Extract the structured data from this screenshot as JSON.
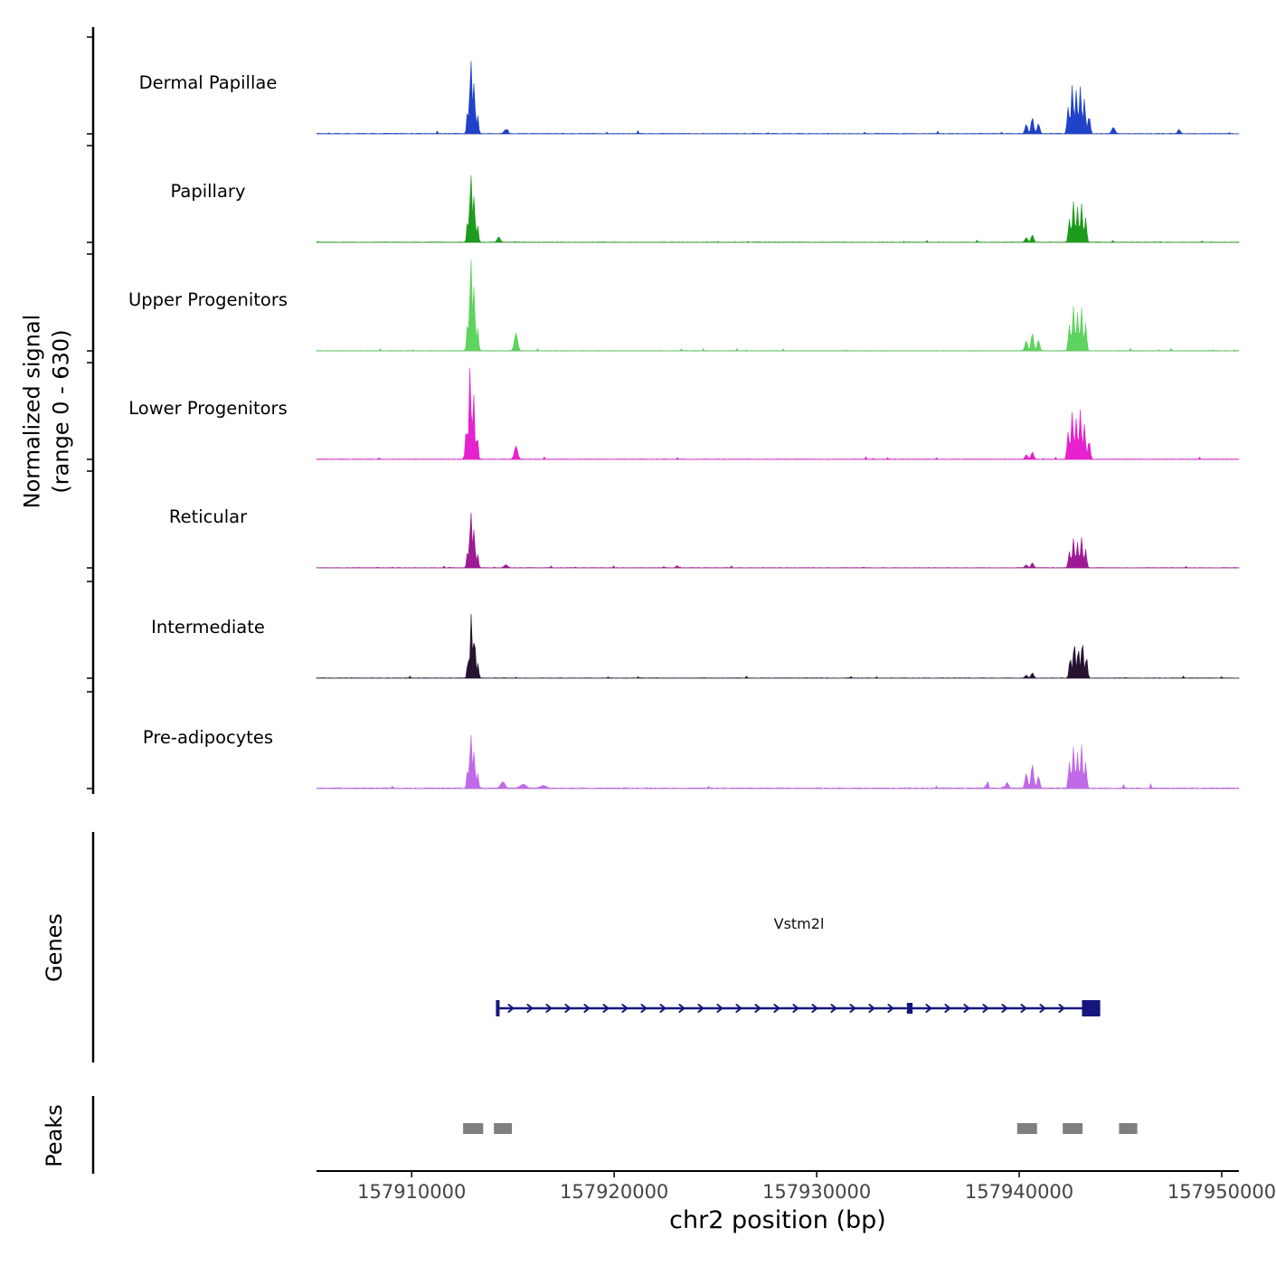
{
  "figure": {
    "y_axis_label_line1": "Normalized signal",
    "y_axis_label_line2": "(range 0 - 630)",
    "genes_section_label": "Genes",
    "peaks_section_label": "Peaks",
    "gene_name": "Vstm2l",
    "x_axis_title": "chr2 position (bp)"
  },
  "chart_data": {
    "type": "area",
    "xlabel": "chr2 position (bp)",
    "ylabel": "Normalized signal (range 0 - 630)",
    "x_domain": [
      157905300,
      157950850
    ],
    "ylim": [
      0,
      630
    ],
    "x_ticks": [
      {
        "pos": 157910000,
        "label": "157910000"
      },
      {
        "pos": 157920000,
        "label": "157920000"
      },
      {
        "pos": 157930000,
        "label": "157930000"
      },
      {
        "pos": 157940000,
        "label": "157940000"
      },
      {
        "pos": 157950000,
        "label": "157950000"
      }
    ],
    "tracks": [
      {
        "label": "Dermal Papillae",
        "color": "#1f42c8",
        "noise": 6,
        "peaks": [
          [
            157912760,
            150,
            60
          ],
          [
            157912920,
            500,
            65
          ],
          [
            157913080,
            330,
            65
          ],
          [
            157913260,
            120,
            60
          ],
          [
            157914650,
            25,
            120
          ],
          [
            157940350,
            60,
            90
          ],
          [
            157940650,
            105,
            85
          ],
          [
            157940950,
            65,
            85
          ],
          [
            157942420,
            175,
            75
          ],
          [
            157942620,
            320,
            70
          ],
          [
            157942820,
            285,
            70
          ],
          [
            157943020,
            310,
            70
          ],
          [
            157943220,
            225,
            70
          ],
          [
            157943450,
            115,
            80
          ],
          [
            157944650,
            40,
            110
          ],
          [
            157947900,
            28,
            70
          ]
        ]
      },
      {
        "label": "Papillary",
        "color": "#1d9b1d",
        "noise": 4,
        "peaks": [
          [
            157912760,
            140,
            60
          ],
          [
            157912920,
            460,
            65
          ],
          [
            157913080,
            300,
            65
          ],
          [
            157913260,
            110,
            60
          ],
          [
            157914300,
            35,
            100
          ],
          [
            157940350,
            30,
            90
          ],
          [
            157940650,
            48,
            85
          ],
          [
            157942480,
            150,
            75
          ],
          [
            157942680,
            265,
            70
          ],
          [
            157942880,
            230,
            70
          ],
          [
            157943080,
            250,
            70
          ],
          [
            157943280,
            160,
            70
          ]
        ]
      },
      {
        "label": "Upper Progenitors",
        "color": "#5fd35f",
        "noise": 5,
        "peaks": [
          [
            157912760,
            185,
            60
          ],
          [
            157912920,
            630,
            65
          ],
          [
            157913080,
            420,
            65
          ],
          [
            157913260,
            150,
            60
          ],
          [
            157915150,
            115,
            110
          ],
          [
            157940350,
            65,
            90
          ],
          [
            157940650,
            115,
            85
          ],
          [
            157940950,
            70,
            85
          ],
          [
            157942480,
            170,
            75
          ],
          [
            157942680,
            290,
            70
          ],
          [
            157942880,
            250,
            70
          ],
          [
            157943080,
            280,
            70
          ],
          [
            157943280,
            180,
            70
          ]
        ]
      },
      {
        "label": "Lower Progenitors",
        "color": "#e522ce",
        "noise": 5,
        "peaks": [
          [
            157912700,
            200,
            70
          ],
          [
            157912880,
            610,
            65
          ],
          [
            157913060,
            430,
            65
          ],
          [
            157913240,
            160,
            60
          ],
          [
            157915150,
            85,
            110
          ],
          [
            157940350,
            28,
            90
          ],
          [
            157940650,
            48,
            85
          ],
          [
            157942420,
            180,
            75
          ],
          [
            157942620,
            310,
            70
          ],
          [
            157942820,
            270,
            70
          ],
          [
            157943020,
            325,
            70
          ],
          [
            157943220,
            230,
            70
          ],
          [
            157943450,
            120,
            80
          ]
        ]
      },
      {
        "label": "Reticular",
        "color": "#9c1b94",
        "noise": 4,
        "peaks": [
          [
            157912760,
            110,
            60
          ],
          [
            157912920,
            380,
            65
          ],
          [
            157913080,
            250,
            65
          ],
          [
            157913260,
            90,
            60
          ],
          [
            157914650,
            20,
            110
          ],
          [
            157923100,
            15,
            60
          ],
          [
            157940350,
            18,
            90
          ],
          [
            157940650,
            32,
            85
          ],
          [
            157942480,
            105,
            75
          ],
          [
            157942680,
            190,
            70
          ],
          [
            157942880,
            165,
            70
          ],
          [
            157943080,
            200,
            70
          ],
          [
            157943280,
            120,
            70
          ]
        ]
      },
      {
        "label": "Intermediate",
        "color": "#261331",
        "noise": 4,
        "peaks": [
          [
            157912780,
            120,
            60
          ],
          [
            157912940,
            420,
            62
          ],
          [
            157913100,
            280,
            62
          ],
          [
            157913270,
            95,
            60
          ],
          [
            157940350,
            18,
            90
          ],
          [
            157940650,
            34,
            85
          ],
          [
            157942520,
            130,
            75
          ],
          [
            157942720,
            235,
            70
          ],
          [
            157942920,
            200,
            70
          ],
          [
            157943120,
            245,
            70
          ],
          [
            157943320,
            140,
            70
          ]
        ]
      },
      {
        "label": "Pre-adipocytes",
        "color": "#c06ae8",
        "noise": 9,
        "peaks": [
          [
            157912760,
            120,
            60
          ],
          [
            157912920,
            365,
            65
          ],
          [
            157913080,
            240,
            65
          ],
          [
            157913260,
            100,
            60
          ],
          [
            157914500,
            40,
            150
          ],
          [
            157915500,
            25,
            200
          ],
          [
            157916500,
            18,
            200
          ],
          [
            157938400,
            25,
            100
          ],
          [
            157939400,
            35,
            100
          ],
          [
            157940350,
            95,
            90
          ],
          [
            157940650,
            160,
            85
          ],
          [
            157940950,
            75,
            85
          ],
          [
            157942480,
            170,
            75
          ],
          [
            157942680,
            270,
            70
          ],
          [
            157942880,
            230,
            70
          ],
          [
            157943080,
            280,
            70
          ],
          [
            157943280,
            170,
            70
          ]
        ]
      }
    ],
    "gene_track": {
      "section_label": "Genes",
      "gene": {
        "name": "Vstm2l",
        "start": 157914250,
        "end": 157944000,
        "strand": "+",
        "mid_exon": 157934600,
        "end_exon_start": 157943100,
        "color": "#15157d"
      }
    },
    "peak_track": {
      "section_label": "Peaks",
      "color": "#7f7f7f",
      "intervals": [
        [
          157912540,
          157913530
        ],
        [
          157914060,
          157914950
        ],
        [
          157939900,
          157940880
        ],
        [
          157942150,
          157943130
        ],
        [
          157944930,
          157945830
        ]
      ]
    }
  }
}
